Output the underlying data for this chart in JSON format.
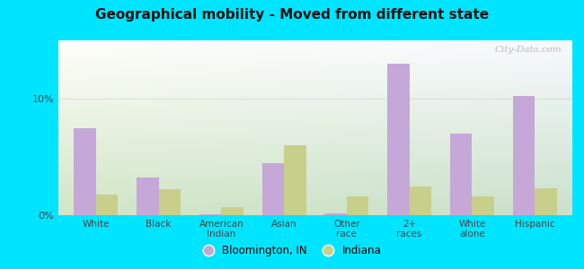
{
  "title": "Geographical mobility - Moved from different state",
  "categories": [
    "White",
    "Black",
    "American\nIndian",
    "Asian",
    "Other\nrace",
    "2+\nraces",
    "White\nalone",
    "Hispanic"
  ],
  "bloomington_values": [
    7.5,
    3.2,
    0.1,
    4.5,
    0.15,
    13.0,
    7.0,
    10.2
  ],
  "indiana_values": [
    1.8,
    2.2,
    0.7,
    6.0,
    1.6,
    2.5,
    1.6,
    2.3
  ],
  "bloomington_color": "#c5a8d8",
  "indiana_color": "#c8cf8a",
  "background_outer": "#00e5ff",
  "ylim": [
    0,
    15
  ],
  "yticks": [
    0,
    10
  ],
  "ytick_labels": [
    "0%",
    "10%"
  ],
  "bar_width": 0.35,
  "legend_labels": [
    "Bloomington, IN",
    "Indiana"
  ],
  "gridline_color": "#dddddd",
  "watermark": "City-Data.com"
}
